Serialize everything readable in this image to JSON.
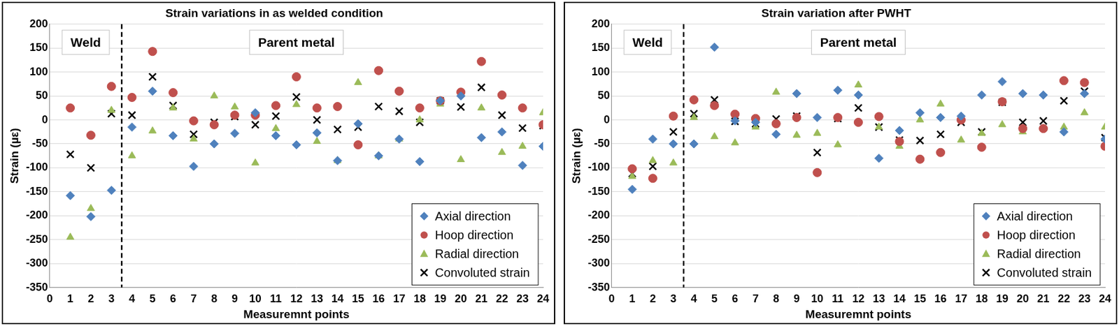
{
  "chart_data": [
    {
      "type": "scatter",
      "title": "Strain variations in as welded condition",
      "x_label": "Measuremnt points",
      "y_label": "Strain (µε)",
      "annotations": [
        "Weld",
        "Parent metal"
      ],
      "boundary_x": 3.5,
      "x": [
        1,
        2,
        3,
        4,
        5,
        6,
        7,
        8,
        9,
        10,
        11,
        12,
        13,
        14,
        15,
        16,
        17,
        18,
        19,
        20,
        21,
        22,
        23,
        24
      ],
      "series": [
        {
          "name": "Axial direction",
          "color": "#4f81bd",
          "marker": "diamond",
          "values": [
            -158,
            -202,
            -147,
            -15,
            60,
            -33,
            -97,
            -50,
            -28,
            15,
            -33,
            -52,
            -27,
            -85,
            -8,
            -75,
            -40,
            -87,
            40,
            50,
            -37,
            -25,
            -95,
            -55
          ]
        },
        {
          "name": "Hoop direction",
          "color": "#c0504d",
          "marker": "circle",
          "values": [
            25,
            -32,
            70,
            47,
            143,
            57,
            -2,
            -10,
            10,
            10,
            30,
            90,
            25,
            28,
            -52,
            103,
            60,
            25,
            40,
            58,
            122,
            52,
            25,
            -10
          ]
        },
        {
          "name": "Radial direction",
          "color": "#9bbb59",
          "marker": "triangle",
          "values": [
            -245,
            -185,
            20,
            -75,
            -23,
            25,
            -40,
            50,
            27,
            -90,
            -18,
            32,
            -45,
            -85,
            78,
            -75,
            -40,
            0,
            33,
            -83,
            25,
            -68,
            -55,
            15
          ]
        },
        {
          "name": "Convoluted strain",
          "color": "#000000",
          "marker": "x",
          "values": [
            -72,
            -100,
            13,
            10,
            90,
            30,
            -30,
            -5,
            7,
            -10,
            8,
            48,
            0,
            -20,
            -15,
            28,
            18,
            -5,
            40,
            27,
            68,
            10,
            -17,
            -12
          ]
        }
      ],
      "xlim": [
        0,
        24
      ],
      "xticks": [
        0,
        1,
        2,
        3,
        4,
        5,
        6,
        7,
        8,
        9,
        10,
        11,
        12,
        13,
        14,
        15,
        16,
        17,
        18,
        19,
        20,
        21,
        22,
        23,
        24
      ],
      "ylim": [
        -350,
        200
      ],
      "yticks": [
        -350,
        -300,
        -250,
        -200,
        -150,
        -100,
        -50,
        0,
        50,
        100,
        150,
        200
      ],
      "grid": true,
      "legend": "lower right"
    },
    {
      "type": "scatter",
      "title": "Strain variation after PWHT",
      "x_label": "Measuremnt points",
      "y_label": "Strain (µε)",
      "annotations": [
        "Weld",
        "Parent metal"
      ],
      "boundary_x": 3.5,
      "x": [
        1,
        2,
        3,
        4,
        5,
        6,
        7,
        8,
        9,
        10,
        11,
        12,
        13,
        14,
        15,
        16,
        17,
        18,
        19,
        20,
        21,
        22,
        23,
        24
      ],
      "series": [
        {
          "name": "Axial direction",
          "color": "#4f81bd",
          "marker": "diamond",
          "values": [
            -145,
            -40,
            -50,
            -50,
            152,
            -2,
            -5,
            -30,
            55,
            5,
            62,
            52,
            -80,
            -22,
            15,
            5,
            8,
            52,
            80,
            55,
            52,
            -25,
            55,
            -40
          ]
        },
        {
          "name": "Hoop direction",
          "color": "#c0504d",
          "marker": "circle",
          "values": [
            -102,
            -122,
            8,
            42,
            30,
            12,
            3,
            -8,
            5,
            -110,
            5,
            -5,
            7,
            -45,
            -82,
            -68,
            0,
            -57,
            38,
            -18,
            -18,
            82,
            78,
            -55
          ]
        },
        {
          "name": "Radial direction",
          "color": "#9bbb59",
          "marker": "triangle",
          "values": [
            -118,
            -85,
            -90,
            5,
            -35,
            -48,
            -15,
            58,
            -32,
            -28,
            -52,
            73,
            -15,
            -55,
            0,
            33,
            -42,
            -28,
            -10,
            -25,
            -18,
            -15,
            15,
            -15
          ]
        },
        {
          "name": "Convoluted strain",
          "color": "#000000",
          "marker": "x",
          "values": [
            -112,
            -97,
            -25,
            13,
            42,
            -3,
            -8,
            2,
            8,
            -68,
            3,
            25,
            -15,
            -42,
            -43,
            -30,
            -5,
            -25,
            37,
            -5,
            -2,
            40,
            60,
            -37
          ]
        }
      ],
      "xlim": [
        0,
        24
      ],
      "xticks": [
        0,
        1,
        2,
        3,
        4,
        5,
        6,
        7,
        8,
        9,
        10,
        11,
        12,
        13,
        14,
        15,
        16,
        17,
        18,
        19,
        20,
        21,
        22,
        23,
        24
      ],
      "ylim": [
        -350,
        200
      ],
      "yticks": [
        -350,
        -300,
        -250,
        -200,
        -150,
        -100,
        -50,
        0,
        50,
        100,
        150,
        200
      ],
      "grid": true,
      "legend": "lower right"
    }
  ]
}
